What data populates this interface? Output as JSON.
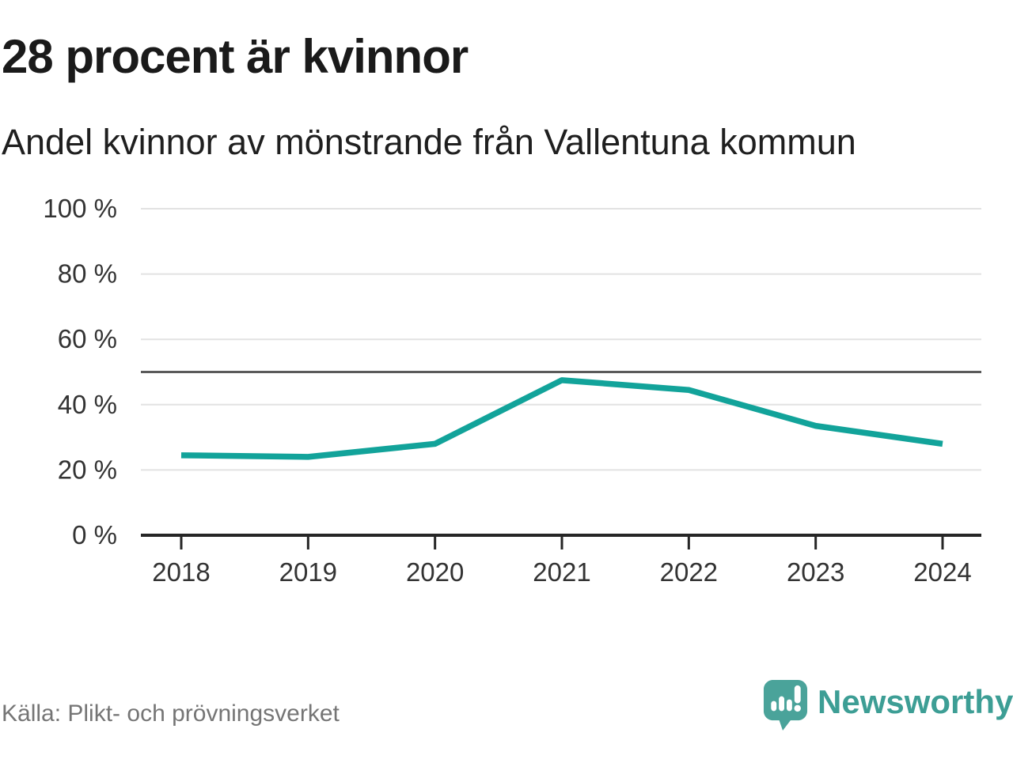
{
  "chart_data": {
    "type": "line",
    "title": "28 procent är kvinnor",
    "subtitle": "Andel kvinnor av mönstrande från Vallentuna kommun",
    "source": "Källa: Plikt- och prövningsverket",
    "categories": [
      "2018",
      "2019",
      "2020",
      "2021",
      "2022",
      "2023",
      "2024"
    ],
    "series": [
      {
        "name": "Andel kvinnor av mönstrande",
        "values": [
          24.5,
          24,
          28,
          47.5,
          44.5,
          33.5,
          28
        ]
      }
    ],
    "unit": "%",
    "ylim": [
      0,
      100
    ],
    "yticks": [
      0,
      20,
      40,
      60,
      80,
      100
    ],
    "ytick_labels": [
      "0 %",
      "20 %",
      "40 %",
      "60 %",
      "80 %",
      "100 %"
    ],
    "reference_line": 50,
    "grid": true,
    "legend": "none"
  },
  "footer": {
    "brand": "Newsworthy"
  },
  "colors": {
    "line": "#12a39a",
    "brand_teal": "#4aa39a",
    "brand_text": "#3d9e95",
    "gridline": "#e2e2e2",
    "reference_line": "#5a5a5a",
    "axis": "#262626",
    "tick_text": "#333333",
    "title_text": "#1a1a1a",
    "source_text": "#757575"
  }
}
